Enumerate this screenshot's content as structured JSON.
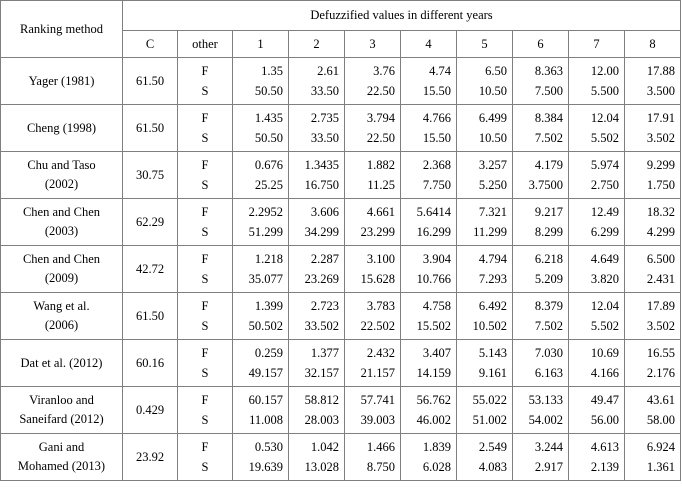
{
  "table": {
    "header": {
      "title": "Ranking method",
      "group": "Defuzzified values in different years",
      "columns": [
        "C",
        "other",
        "1",
        "2",
        "3",
        "4",
        "5",
        "6",
        "7",
        "8"
      ]
    },
    "rows": [
      {
        "method": "Yager (1981)",
        "C": "61.50",
        "other": [
          "F",
          "S"
        ],
        "F": [
          "1.35",
          "2.61",
          "3.76",
          "4.74",
          "6.50",
          "8.363",
          "12.00",
          "17.88"
        ],
        "S": [
          "50.50",
          "33.50",
          "22.50",
          "15.50",
          "10.50",
          "7.500",
          "5.500",
          "3.500"
        ]
      },
      {
        "method": "Cheng (1998)",
        "C": "61.50",
        "other": [
          "F",
          "S"
        ],
        "F": [
          "1.435",
          "2.735",
          "3.794",
          "4.766",
          "6.499",
          "8.384",
          "12.04",
          "17.91"
        ],
        "S": [
          "50.50",
          "33.50",
          "22.50",
          "15.50",
          "10.50",
          "7.502",
          "5.502",
          "3.502"
        ]
      },
      {
        "method": "Chu and Taso (2002)",
        "C": "30.75",
        "other": [
          "F",
          "S"
        ],
        "F": [
          "0.676",
          "1.3435",
          "1.882",
          "2.368",
          "3.257",
          "4.179",
          "5.974",
          "9.299"
        ],
        "S": [
          "25.25",
          "16.750",
          "11.25",
          "7.750",
          "5.250",
          "3.7500",
          "2.750",
          "1.750"
        ]
      },
      {
        "method": "Chen and Chen (2003)",
        "C": "62.29",
        "other": [
          "F",
          "S"
        ],
        "F": [
          "2.2952",
          "3.606",
          "4.661",
          "5.6414",
          "7.321",
          "9.217",
          "12.49",
          "18.32"
        ],
        "S": [
          "51.299",
          "34.299",
          "23.299",
          "16.299",
          "11.299",
          "8.299",
          "6.299",
          "4.299"
        ]
      },
      {
        "method": "Chen and Chen (2009)",
        "C": "42.72",
        "other": [
          "F",
          "S"
        ],
        "F": [
          "1.218",
          "2.287",
          "3.100",
          "3.904",
          "4.794",
          "6.218",
          "4.649",
          "6.500"
        ],
        "S": [
          "35.077",
          "23.269",
          "15.628",
          "10.766",
          "7.293",
          "5.209",
          "3.820",
          "2.431"
        ]
      },
      {
        "method": "Wang et al. (2006)",
        "C": "61.50",
        "other": [
          "F",
          "S"
        ],
        "F": [
          "1.399",
          "2.723",
          "3.783",
          "4.758",
          "6.492",
          "8.379",
          "12.04",
          "17.89"
        ],
        "S": [
          "50.502",
          "33.502",
          "22.502",
          "15.502",
          "10.502",
          "7.502",
          "5.502",
          "3.502"
        ]
      },
      {
        "method": "Dat et al. (2012)",
        "C": "60.16",
        "other": [
          "F",
          "S"
        ],
        "F": [
          "0.259",
          "1.377",
          "2.432",
          "3.407",
          "5.143",
          "7.030",
          "10.69",
          "16.55"
        ],
        "S": [
          "49.157",
          "32.157",
          "21.157",
          "14.159",
          "9.161",
          "6.163",
          "4.166",
          "2.176"
        ]
      },
      {
        "method": "Viranloo and Saneifard (2012)",
        "C": "0.429",
        "other": [
          "F",
          "S"
        ],
        "F": [
          "60.157",
          "58.812",
          "57.741",
          "56.762",
          "55.022",
          "53.133",
          "49.47",
          "43.61"
        ],
        "S": [
          "11.008",
          "28.003",
          "39.003",
          "46.002",
          "51.002",
          "54.002",
          "56.00",
          "58.00"
        ]
      },
      {
        "method": "Gani and Mohamed (2013)",
        "C": "23.92",
        "other": [
          "F",
          "S"
        ],
        "F": [
          "0.530",
          "1.042",
          "1.466",
          "1.839",
          "2.549",
          "3.244",
          "4.613",
          "6.924"
        ],
        "S": [
          "19.639",
          "13.028",
          "8.750",
          "6.028",
          "4.083",
          "2.917",
          "2.139",
          "1.361"
        ]
      }
    ]
  }
}
